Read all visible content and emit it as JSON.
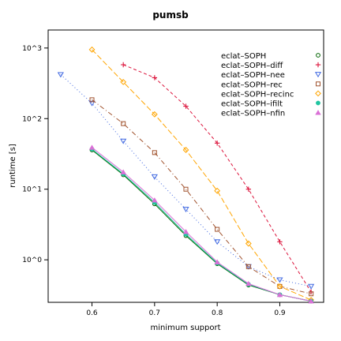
{
  "chart_data": {
    "type": "line",
    "title": "pumsb",
    "xlabel": "minimum support",
    "ylabel": "runtime [s]",
    "y_scale": "log10",
    "xlim": [
      0.53,
      0.97
    ],
    "ylim": [
      0.25,
      1800
    ],
    "x_ticks": [
      {
        "value": 0.6,
        "label": "0.6"
      },
      {
        "value": 0.7,
        "label": "0.7"
      },
      {
        "value": 0.8,
        "label": "0.8"
      },
      {
        "value": 0.9,
        "label": "0.9"
      }
    ],
    "y_ticks": [
      {
        "value": 1,
        "label": "10^0"
      },
      {
        "value": 10,
        "label": "10^1"
      },
      {
        "value": 100,
        "label": "10^2"
      },
      {
        "value": 1000,
        "label": "10^3"
      }
    ],
    "legend_position": "top-right",
    "series": [
      {
        "name": "eclat–SOPH",
        "color": "#006400",
        "marker": "circle",
        "dash": "solid",
        "x": [
          0.6,
          0.65,
          0.7,
          0.75,
          0.8,
          0.85,
          0.9,
          0.95
        ],
        "y": [
          36,
          16,
          6.2,
          2.2,
          0.88,
          0.44,
          0.32,
          0.26
        ]
      },
      {
        "name": "eclat–SOPH–diff",
        "color": "#dc143c",
        "marker": "plus",
        "dash": "4,3",
        "x": [
          0.65,
          0.7,
          0.75,
          0.8,
          0.85,
          0.9,
          0.95
        ],
        "y": [
          580,
          380,
          150,
          45,
          10,
          1.8,
          0.35
        ]
      },
      {
        "name": "eclat–SOPH–nee",
        "color": "#4169e1",
        "marker": "triangle-down",
        "dash": "1,3",
        "x": [
          0.55,
          0.6,
          0.65,
          0.7,
          0.75,
          0.8,
          0.85,
          0.9,
          0.95
        ],
        "y": [
          420,
          165,
          48,
          15,
          5.2,
          1.8,
          0.8,
          0.52,
          0.42
        ]
      },
      {
        "name": "eclat–SOPH–rec",
        "color": "#a0522d",
        "marker": "square",
        "dash": "6,3,1,3",
        "x": [
          0.6,
          0.65,
          0.7,
          0.75,
          0.8,
          0.85,
          0.9,
          0.95
        ],
        "y": [
          185,
          85,
          33,
          10,
          2.7,
          0.8,
          0.42,
          0.33
        ]
      },
      {
        "name": "eclat–SOPH–recinc",
        "color": "#ffa500",
        "marker": "diamond",
        "dash": "7,3",
        "x": [
          0.6,
          0.65,
          0.7,
          0.75,
          0.8,
          0.85,
          0.9,
          0.95
        ],
        "y": [
          950,
          330,
          115,
          36,
          9.5,
          1.7,
          0.42,
          0.27
        ]
      },
      {
        "name": "eclat–SOPH–ifilt",
        "color": "#20c5a0",
        "marker": "filled-circle",
        "dash": "solid",
        "x": [
          0.6,
          0.65,
          0.7,
          0.75,
          0.8,
          0.85,
          0.9,
          0.95
        ],
        "y": [
          37,
          16.5,
          6.5,
          2.3,
          0.9,
          0.45,
          0.32,
          0.26
        ]
      },
      {
        "name": "eclat–SOPH–nfin",
        "color": "#da70d6",
        "marker": "filled-triangle",
        "dash": "solid",
        "x": [
          0.6,
          0.65,
          0.7,
          0.75,
          0.8,
          0.85,
          0.9,
          0.95
        ],
        "y": [
          39,
          17.5,
          7,
          2.5,
          0.93,
          0.46,
          0.32,
          0.26
        ]
      }
    ]
  }
}
